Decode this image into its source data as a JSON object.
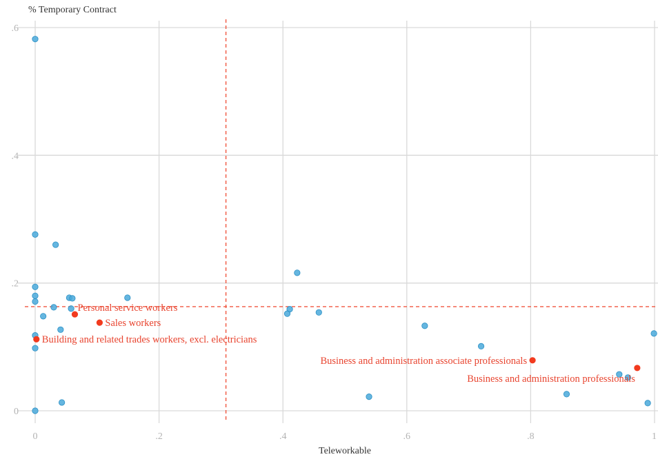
{
  "chart_data": {
    "type": "scatter",
    "ylabel": "% Temporary Contract",
    "xlabel": "Teleworkable",
    "xlim": [
      0,
      1
    ],
    "ylim": [
      0,
      0.6
    ],
    "x_ticks": [
      {
        "value": 0,
        "label": "0"
      },
      {
        "value": 0.2,
        "label": ".2"
      },
      {
        "value": 0.4,
        "label": ".4"
      },
      {
        "value": 0.6,
        "label": ".6"
      },
      {
        "value": 0.8,
        "label": ".8"
      },
      {
        "value": 1,
        "label": "1"
      }
    ],
    "y_ticks": [
      {
        "value": 0,
        "label": "0"
      },
      {
        "value": 0.2,
        "label": ".2"
      },
      {
        "value": 0.4,
        "label": ".4"
      },
      {
        "value": 0.6,
        "label": ".6"
      }
    ],
    "grid": true,
    "reference_lines": {
      "x": 0.308,
      "y": 0.163
    },
    "colors": {
      "points": "#4aa9db",
      "points_edge": "#2a8fc4",
      "highlight": "#f23a1e",
      "reference": "#f0553e",
      "grid": "#d9d9d9"
    },
    "points": [
      {
        "x": 0.0,
        "y": 0.582
      },
      {
        "x": 0.0,
        "y": 0.276
      },
      {
        "x": 0.033,
        "y": 0.26
      },
      {
        "x": 0.0,
        "y": 0.194
      },
      {
        "x": 0.0,
        "y": 0.18
      },
      {
        "x": 0.0,
        "y": 0.171
      },
      {
        "x": 0.03,
        "y": 0.162
      },
      {
        "x": 0.055,
        "y": 0.177
      },
      {
        "x": 0.06,
        "y": 0.176
      },
      {
        "x": 0.058,
        "y": 0.16
      },
      {
        "x": 0.149,
        "y": 0.177
      },
      {
        "x": 0.013,
        "y": 0.148
      },
      {
        "x": 0.041,
        "y": 0.127
      },
      {
        "x": 0.0,
        "y": 0.118
      },
      {
        "x": 0.0,
        "y": 0.098
      },
      {
        "x": 0.0,
        "y": 0.0
      },
      {
        "x": 0.043,
        "y": 0.013
      },
      {
        "x": 0.423,
        "y": 0.216
      },
      {
        "x": 0.411,
        "y": 0.159
      },
      {
        "x": 0.407,
        "y": 0.152
      },
      {
        "x": 0.458,
        "y": 0.154
      },
      {
        "x": 0.539,
        "y": 0.022
      },
      {
        "x": 0.629,
        "y": 0.133
      },
      {
        "x": 0.72,
        "y": 0.101
      },
      {
        "x": 0.858,
        "y": 0.026
      },
      {
        "x": 0.943,
        "y": 0.057
      },
      {
        "x": 0.957,
        "y": 0.052
      },
      {
        "x": 0.989,
        "y": 0.012
      },
      {
        "x": 0.999,
        "y": 0.121
      }
    ],
    "highlighted": [
      {
        "x": 0.064,
        "y": 0.151,
        "label": "Personal service workers",
        "anchor": "right-above"
      },
      {
        "x": 0.104,
        "y": 0.138,
        "label": "Sales workers",
        "anchor": "right"
      },
      {
        "x": 0.002,
        "y": 0.112,
        "label": "Building and related trades workers, excl. electricians",
        "anchor": "right"
      },
      {
        "x": 0.803,
        "y": 0.079,
        "label": "Business and administration associate professionals",
        "anchor": "left"
      },
      {
        "x": 0.972,
        "y": 0.067,
        "label": "Business and administration professionals",
        "anchor": "left-below"
      }
    ]
  }
}
